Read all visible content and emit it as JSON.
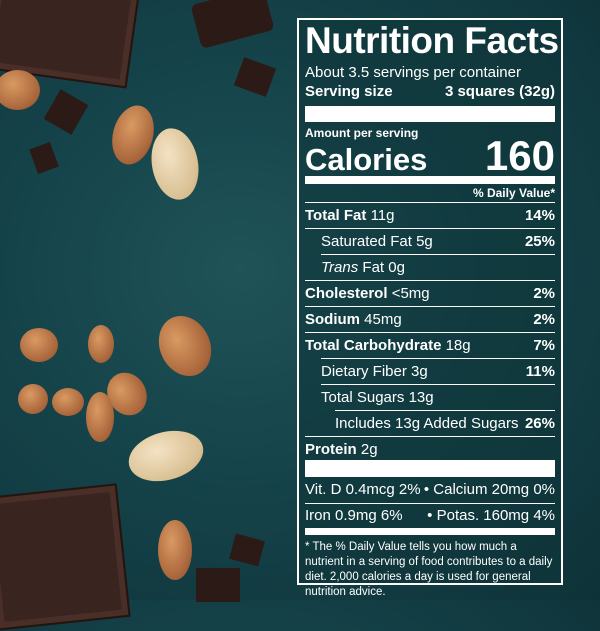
{
  "label": {
    "title": "Nutrition Facts",
    "servings_per_container": "About 3.5 servings per container",
    "serving_size_label": "Serving size",
    "serving_size_value": "3 squares (32g)",
    "amount_per_serving": "Amount per serving",
    "calories_label": "Calories",
    "calories_value": "160",
    "daily_value_header": "% Daily Value*",
    "nutrients": [
      {
        "name": "Total Fat",
        "amount": "11g",
        "dv": "14%"
      },
      {
        "name": "Saturated Fat",
        "amount": "5g",
        "dv": "25%"
      },
      {
        "name": "Trans",
        "name_suffix": "Fat",
        "amount": "0g",
        "dv": ""
      },
      {
        "name": "Cholesterol",
        "amount": "<5mg",
        "dv": "2%"
      },
      {
        "name": "Sodium",
        "amount": "45mg",
        "dv": "2%"
      },
      {
        "name": "Total Carbohydrate",
        "amount": "18g",
        "dv": "7%"
      },
      {
        "name": "Dietary Fiber",
        "amount": "3g",
        "dv": "11%"
      },
      {
        "name": "Total Sugars",
        "amount": "13g",
        "dv": ""
      },
      {
        "name": "Includes 13g Added Sugars",
        "amount": "",
        "dv": "26%"
      },
      {
        "name": "Protein",
        "amount": "2g",
        "dv": ""
      }
    ],
    "vitamins": {
      "row1_left": "Vit. D 0.4mcg 2%",
      "row1_right": "• Calcium 20mg 0%",
      "row2_left": "Iron 0.9mg 6%",
      "row2_right": "• Potas. 160mg 4%"
    },
    "footnote": "* The % Daily Value tells you how much a nutrient in a serving of food contributes to a daily diet. 2,000 calories a day is used for general nutrition advice."
  },
  "colors": {
    "background": "#15434a",
    "label_text": "#ffffff"
  }
}
